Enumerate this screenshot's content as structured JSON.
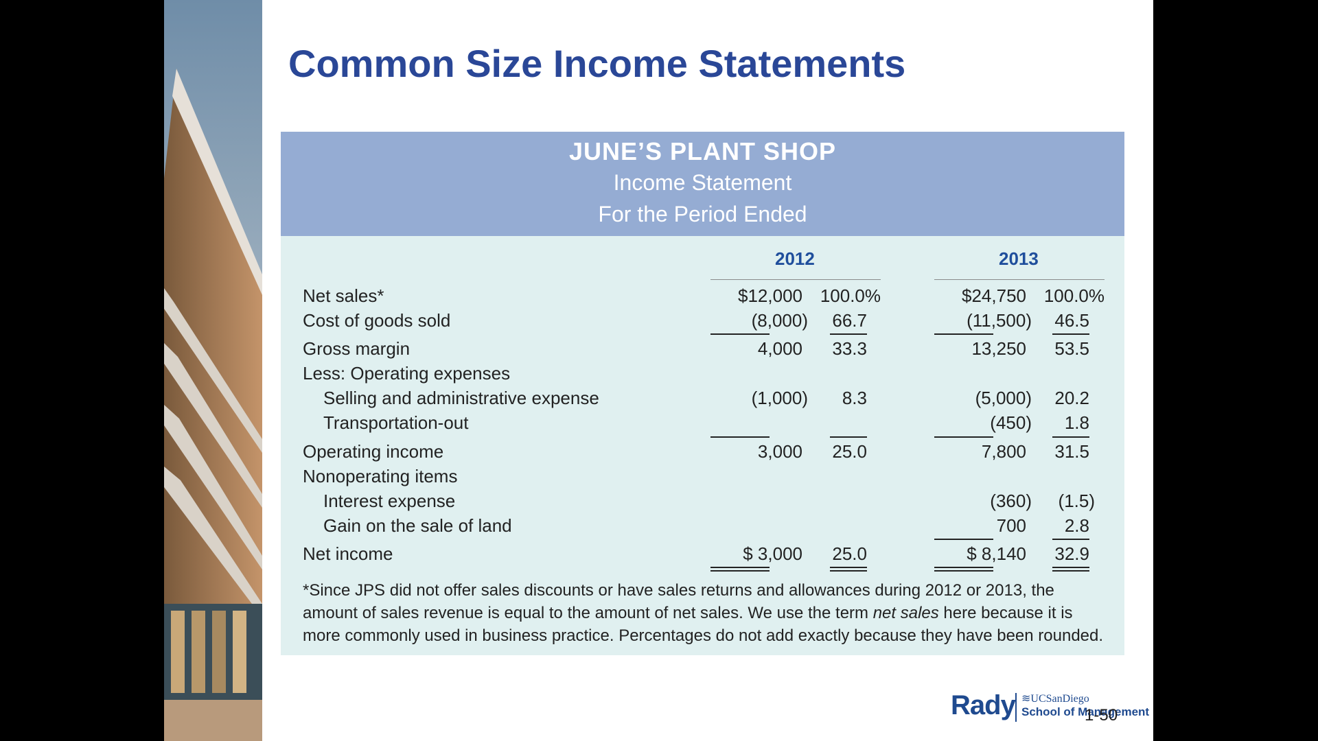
{
  "slide": {
    "title": "Common Size Income Statements",
    "page_number": "1-50"
  },
  "statement": {
    "company": "JUNE’S PLANT SHOP",
    "statement_name": "Income Statement",
    "period": "For the Period Ended",
    "years": [
      "2012",
      "2013"
    ],
    "rows": [
      {
        "label": "Net sales*",
        "v2012": "$12,000",
        "p2012": "100.0%",
        "v2013": "$24,750",
        "p2013": "100.0%"
      },
      {
        "label": "Cost of goods sold",
        "v2012": "(8,000)",
        "p2012": "66.7",
        "v2013": "(11,500)",
        "p2013": "46.5"
      },
      {
        "label": "Gross margin",
        "v2012": "4,000",
        "p2012": "33.3",
        "v2013": "13,250",
        "p2013": "53.5"
      },
      {
        "label": "Less: Operating expenses",
        "v2012": "",
        "p2012": "",
        "v2013": "",
        "p2013": ""
      },
      {
        "label": "Selling and administrative expense",
        "v2012": "(1,000)",
        "p2012": "8.3",
        "v2013": "(5,000)",
        "p2013": "20.2"
      },
      {
        "label": "Transportation-out",
        "v2012": "",
        "p2012": "",
        "v2013": "(450)",
        "p2013": "1.8"
      },
      {
        "label": "Operating income",
        "v2012": "3,000",
        "p2012": "25.0",
        "v2013": "7,800",
        "p2013": "31.5"
      },
      {
        "label": "Nonoperating items",
        "v2012": "",
        "p2012": "",
        "v2013": "",
        "p2013": ""
      },
      {
        "label": "Interest expense",
        "v2012": "",
        "p2012": "",
        "v2013": "(360)",
        "p2013": "(1.5)"
      },
      {
        "label": "Gain on the sale of land",
        "v2012": "",
        "p2012": "",
        "v2013": "700",
        "p2013": "2.8"
      },
      {
        "label": "Net income",
        "v2012": "$ 3,000",
        "p2012": "25.0",
        "v2013": "$ 8,140",
        "p2013": "32.9"
      }
    ],
    "footnote_before": "*Since JPS did not offer sales discounts or have sales returns and allowances during 2012 or 2013, the amount of sales revenue is equal to the amount of net sales. We use the term ",
    "footnote_italic": "net sales",
    "footnote_after": " here because it is more commonly used in business practice. Percentages do not add exactly because they have been rounded."
  },
  "logo": {
    "brand": "Rady",
    "university": "UCSanDiego",
    "school": "School of Management"
  },
  "colors": {
    "title": "#2a4797",
    "header_band": "#95acd3",
    "body_band": "#e0f0f0",
    "year_labels": "#1f4e9c"
  }
}
